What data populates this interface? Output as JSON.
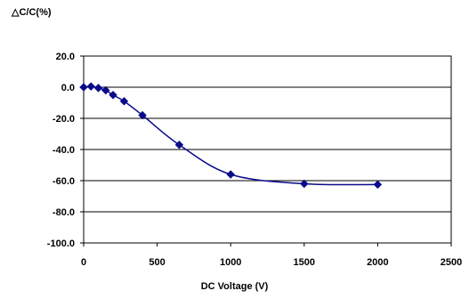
{
  "chart_data": {
    "type": "line",
    "title": "",
    "ylabel": "△C/C(%)",
    "xlabel": "DC Voltage (V)",
    "xlim": [
      0,
      2500
    ],
    "ylim": [
      -100,
      20
    ],
    "x_ticks": [
      "0",
      "500",
      "1000",
      "1500",
      "2000",
      "2500"
    ],
    "y_ticks": [
      "20.0",
      "0.0",
      "-20.0",
      "-40.0",
      "-60.0",
      "-80.0",
      "-100.0"
    ],
    "x_tick_values": [
      0,
      500,
      1000,
      1500,
      2000,
      2500
    ],
    "y_tick_values": [
      20,
      0,
      -20,
      -40,
      -60,
      -80,
      -100
    ],
    "grid": "horizontal",
    "series": [
      {
        "x": [
          0,
          50,
          100,
          150,
          200,
          275,
          400,
          650,
          1000,
          1500,
          2000
        ],
        "y": [
          0,
          0.5,
          -0.5,
          -2,
          -5,
          -9,
          -18,
          -37,
          -56,
          -62,
          -62.5
        ],
        "color": "#0a0a8a",
        "marker": "diamond"
      }
    ]
  }
}
